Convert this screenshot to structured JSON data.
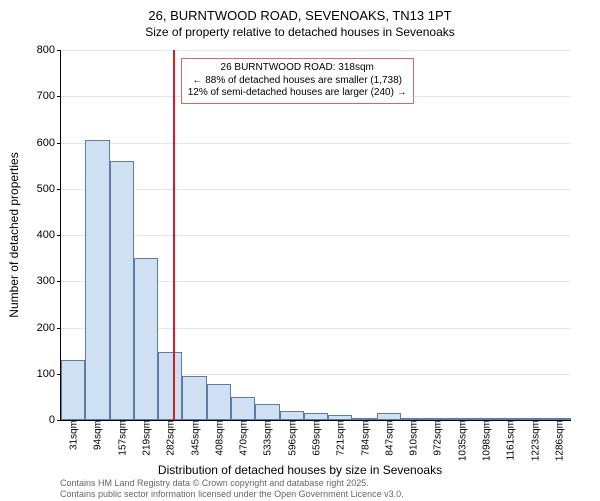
{
  "title": "26, BURNTWOOD ROAD, SEVENOAKS, TN13 1PT",
  "subtitle": "Size of property relative to detached houses in Sevenoaks",
  "chart": {
    "type": "histogram",
    "y_axis": {
      "title": "Number of detached properties",
      "min": 0,
      "max": 800,
      "tick_step": 100,
      "ticks": [
        0,
        100,
        200,
        300,
        400,
        500,
        600,
        700,
        800
      ]
    },
    "x_axis": {
      "title": "Distribution of detached houses by size in Sevenoaks",
      "categories": [
        "31sqm",
        "94sqm",
        "157sqm",
        "219sqm",
        "282sqm",
        "345sqm",
        "408sqm",
        "470sqm",
        "533sqm",
        "596sqm",
        "659sqm",
        "721sqm",
        "784sqm",
        "847sqm",
        "910sqm",
        "972sqm",
        "1035sqm",
        "1098sqm",
        "1161sqm",
        "1223sqm",
        "1286sqm"
      ]
    },
    "values": [
      130,
      605,
      560,
      350,
      146,
      95,
      78,
      50,
      35,
      20,
      15,
      10,
      5,
      15,
      5,
      3,
      3,
      2,
      2,
      2,
      2
    ],
    "bar_fill_color": "#cfe0f3",
    "bar_border_color": "#5b7ba8",
    "background_color": "#ffffff",
    "grid_color": "#e6e6e6",
    "marker": {
      "position_index": 4.6,
      "line_color": "#d02020",
      "line_width": 2
    },
    "annotation": {
      "lines": [
        "26 BURNTWOOD ROAD: 318sqm",
        "← 88% of detached houses are smaller (1,738)",
        "12% of semi-detached houses are larger (240) →"
      ],
      "border_color": "#d06a6a",
      "background_color": "#ffffff"
    }
  },
  "footer": {
    "line1": "Contains HM Land Registry data © Crown copyright and database right 2025.",
    "line2": "Contains public sector information licensed under the Open Government Licence v3.0."
  },
  "style": {
    "title_fontsize": 13,
    "subtitle_fontsize": 12,
    "axis_title_fontsize": 12,
    "tick_fontsize": 11,
    "x_tick_fontsize": 10,
    "annotation_fontsize": 10,
    "footer_fontsize": 9,
    "text_color": "#000000",
    "footer_color": "#666666"
  }
}
